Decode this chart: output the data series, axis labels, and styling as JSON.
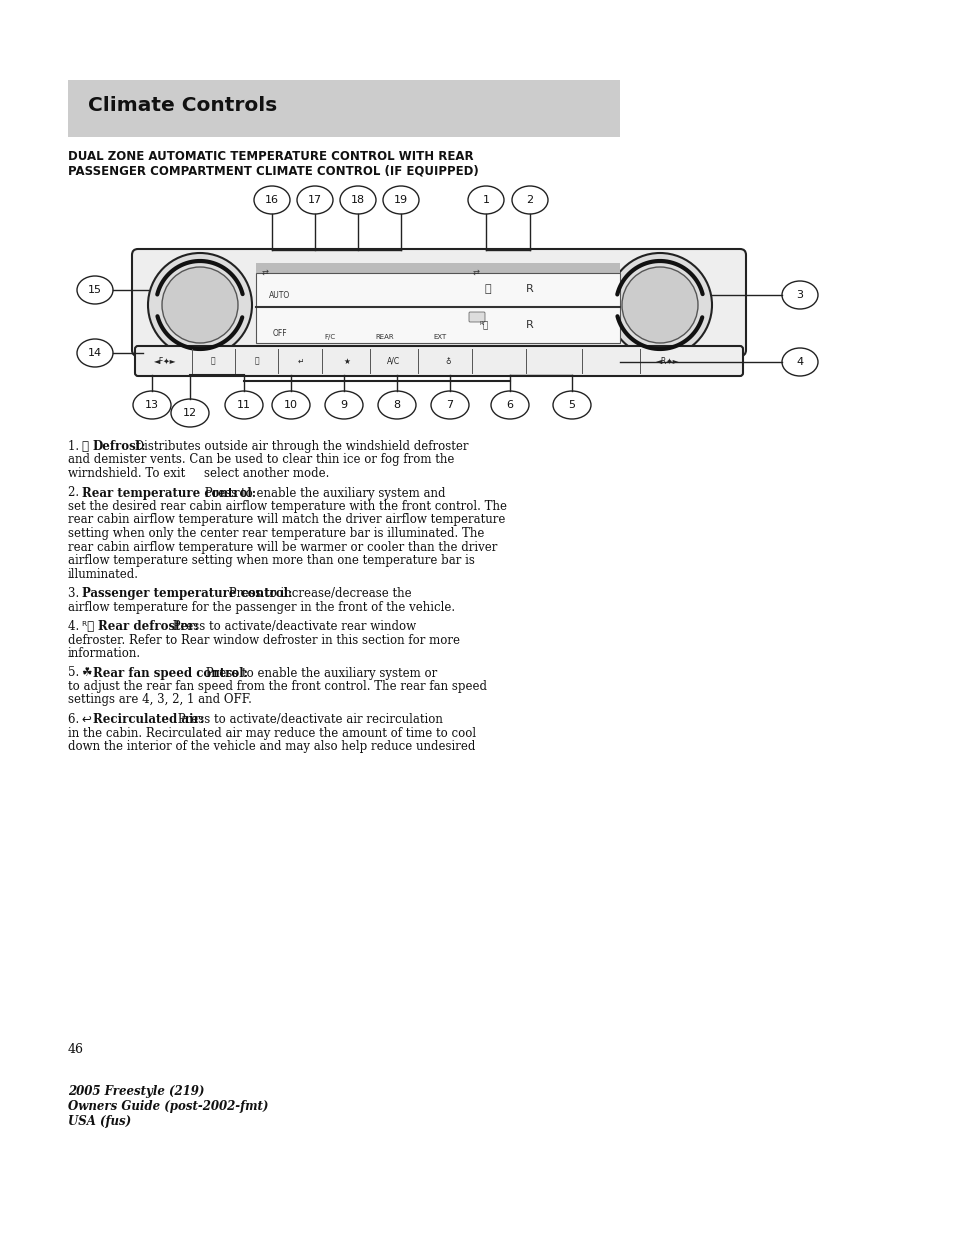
{
  "page_bg": "#ffffff",
  "header_bg": "#cccccc",
  "header_text": "Climate Controls",
  "section_title_line1": "DUAL ZONE AUTOMATIC TEMPERATURE CONTROL WITH REAR",
  "section_title_line2": "PASSENGER COMPARTMENT CLIMATE CONTROL (IF EQUIPPED)",
  "para1_num": "1.",
  "para1_bold": "Defrost:",
  "para1_text": " Distributes outside air through the windshield defroster\nand demister vents. Can be used to clear thin ice or fog from the\nwirndshield. To exit     select another mode.",
  "para2_num": "2.",
  "para2_bold": "Rear temperature control:",
  "para2_text": " Press to enable the auxiliary system and\nset the desired rear cabin airflow temperature with the front control. The\nrear cabin airflow temperature will match the driver airflow temperature\nsetting when only the center rear temperature bar is illuminated. The\nrear cabin airflow temperature will be warmer or cooler than the driver\nairflow temperature setting when more than one temperature bar is\nilluminated.",
  "para3_num": "3.",
  "para3_bold": "Passenger temperature control:",
  "para3_text": " Press to increase/decrease the\nairflow temperature for the passenger in the front of the vehicle.",
  "para4_num": "4.",
  "para4_bold": "Rear defroster:",
  "para4_text": " Press to activate/deactivate rear window\ndefroster. Refer to Rear window defroster in this section for more\ninformation.",
  "para5_num": "5.",
  "para5_bold": "Rear fan speed control:",
  "para5_text": " Press to enable the auxiliary system or\nto adjust the rear fan speed from the front control. The rear fan speed\nsettings are 4, 3, 2, 1 and OFF.",
  "para6_num": "6.",
  "para6_bold": "Recirculated air:",
  "para6_text": " Press to activate/deactivate air recirculation\nin the cabin. Recirculated air may reduce the amount of time to cool\ndown the interior of the vehicle and may also help reduce undesired",
  "footer_line1": "2005 Freestyle (219)",
  "footer_line2": "Owners Guide (post-2002-fmt)",
  "footer_line3": "USA (fus)",
  "page_number": "46"
}
